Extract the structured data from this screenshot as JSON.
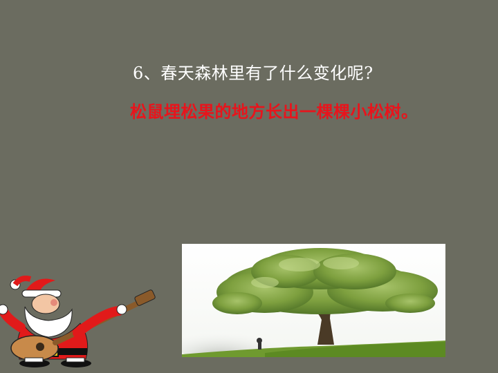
{
  "slide": {
    "question": "6、春天森林里有了什么变化呢?",
    "answer": "松鼠埋松果的地方长出一棵棵小松树。"
  },
  "images": {
    "tree_photo_icon": "tree-photo-icon",
    "santa_icon": "santa-guitar-icon"
  },
  "colors": {
    "background": "#6b6c60",
    "question_text": "#ffffff",
    "answer_text": "#e8141c"
  }
}
